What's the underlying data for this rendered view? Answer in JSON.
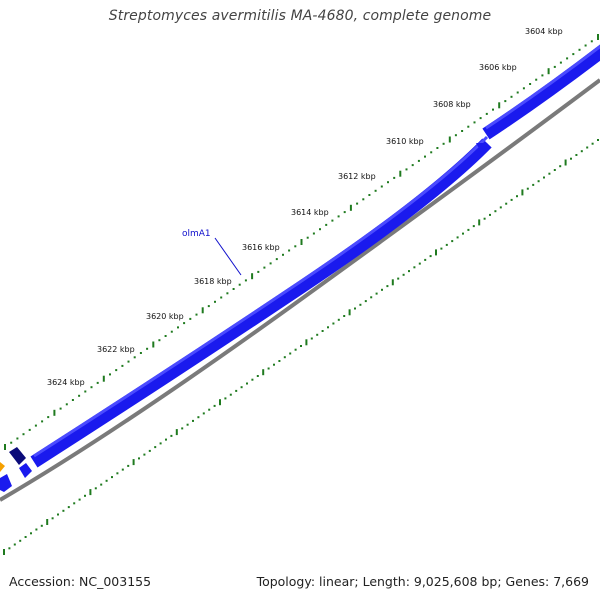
{
  "header": {
    "title": "Streptomyces avermitilis MA-4680, complete genome"
  },
  "footer": {
    "accession": "Accession: NC_003155",
    "summary": "Topology: linear; Length: 9,025,608 bp; Genes: 7,669"
  },
  "ruler": {
    "ticks": [
      {
        "kbp": 3604,
        "label": "3604 kbp"
      },
      {
        "kbp": 3606,
        "label": "3606 kbp"
      },
      {
        "kbp": 3608,
        "label": "3608 kbp"
      },
      {
        "kbp": 3610,
        "label": "3610 kbp"
      },
      {
        "kbp": 3612,
        "label": "3612 kbp"
      },
      {
        "kbp": 3614,
        "label": "3614 kbp"
      },
      {
        "kbp": 3616,
        "label": "3616 kbp"
      },
      {
        "kbp": 3618,
        "label": "3618 kbp"
      },
      {
        "kbp": 3620,
        "label": "3620 kbp"
      },
      {
        "kbp": 3622,
        "label": "3622 kbp"
      },
      {
        "kbp": 3624,
        "label": "3624 kbp"
      }
    ]
  },
  "genes": [
    {
      "name": "olmA1",
      "label": "olmA1"
    }
  ],
  "colors": {
    "forward_strand": "#1a1aee",
    "forward_highlight": "#4b4bff",
    "shadow": "#7a7a7a",
    "dark_gene": "#0b0b7a",
    "orange_gene": "#f5a000",
    "tick_green": "#1f7a1f",
    "gene_label": "#1010cc",
    "title_text": "#444444"
  }
}
